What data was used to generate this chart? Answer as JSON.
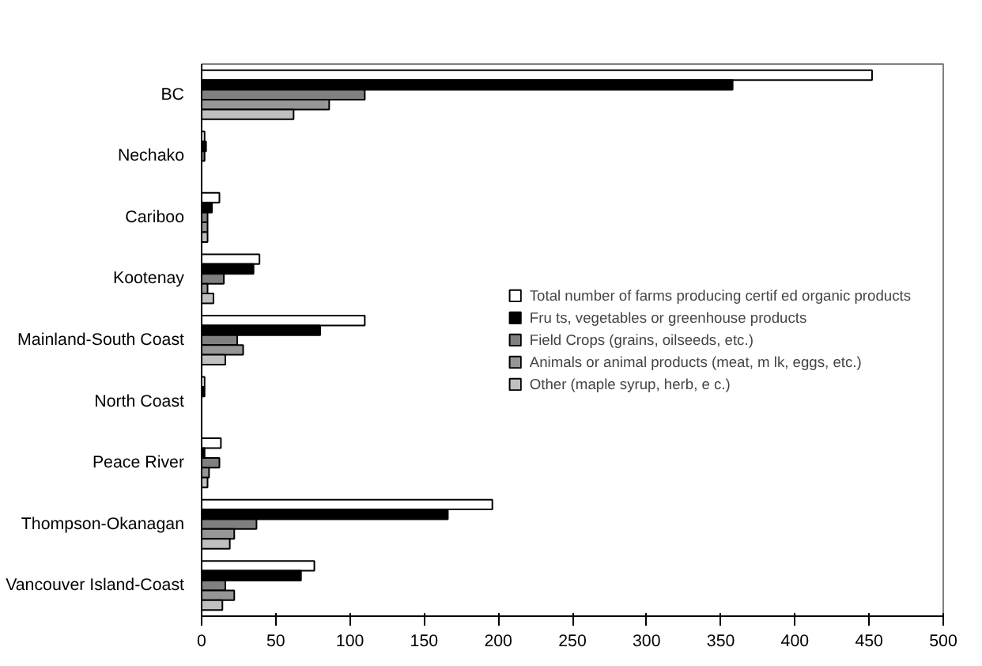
{
  "chart_data": {
    "type": "bar",
    "orientation": "horizontal",
    "categories": [
      "BC",
      "Nechako",
      "Cariboo",
      "Kootenay",
      "Mainland-South Coast",
      "North Coast",
      "Peace River",
      "Thompson-Okanagan",
      "Vancouver Island-Coast"
    ],
    "series": [
      {
        "name": "Total number of farms producing certif ed organic products",
        "color": "#ffffff",
        "values": [
          452,
          2,
          12,
          39,
          110,
          2,
          13,
          196,
          76
        ]
      },
      {
        "name": "Fru ts, vegetables or greenhouse products",
        "color": "#000000",
        "values": [
          358,
          3,
          7,
          35,
          80,
          2,
          2,
          166,
          67
        ]
      },
      {
        "name": "Field Crops (grains, oilseeds, etc.)",
        "color": "#808080",
        "values": [
          110,
          2,
          4,
          15,
          24,
          null,
          12,
          37,
          16
        ]
      },
      {
        "name": "Animals or animal products (meat, m lk, eggs, etc.)",
        "color": "#969696",
        "values": [
          86,
          null,
          4,
          4,
          28,
          null,
          5,
          22,
          22
        ]
      },
      {
        "name": "Other (maple syrup, herb, e c.)",
        "color": "#c0c0c0",
        "values": [
          62,
          null,
          4,
          8,
          16,
          null,
          4,
          19,
          14
        ]
      }
    ],
    "xlim": [
      0,
      500
    ],
    "xticks": [
      0,
      50,
      100,
      150,
      200,
      250,
      300,
      350,
      400,
      450,
      500
    ],
    "legend": "right",
    "grid": false
  }
}
